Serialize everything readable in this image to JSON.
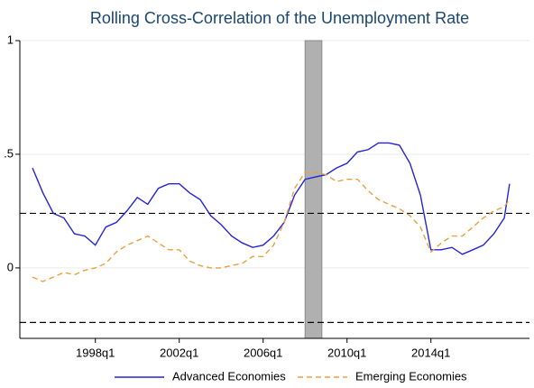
{
  "chart_data": {
    "type": "line",
    "title": "Rolling Cross-Correlation of the Unemployment Rate",
    "x": [
      1995.0,
      1995.5,
      1996.0,
      1996.5,
      1997.0,
      1997.5,
      1998.0,
      1998.5,
      1999.0,
      1999.5,
      2000.0,
      2000.5,
      2001.0,
      2001.5,
      2002.0,
      2002.5,
      2003.0,
      2003.5,
      2004.0,
      2004.5,
      2005.0,
      2005.5,
      2006.0,
      2006.5,
      2007.0,
      2007.5,
      2008.0,
      2008.5,
      2009.0,
      2009.5,
      2010.0,
      2010.5,
      2011.0,
      2011.5,
      2012.0,
      2012.5,
      2013.0,
      2013.5,
      2014.0,
      2014.5,
      2015.0,
      2015.5,
      2016.0,
      2016.5,
      2017.0,
      2017.5,
      2017.75
    ],
    "series": [
      {
        "name": "Advanced Economies",
        "color": "#2424d8",
        "dash": "solid",
        "values": [
          0.44,
          0.33,
          0.24,
          0.22,
          0.15,
          0.14,
          0.1,
          0.18,
          0.2,
          0.25,
          0.31,
          0.28,
          0.35,
          0.37,
          0.37,
          0.33,
          0.3,
          0.23,
          0.19,
          0.14,
          0.11,
          0.09,
          0.1,
          0.14,
          0.2,
          0.32,
          0.39,
          0.4,
          0.41,
          0.44,
          0.46,
          0.51,
          0.52,
          0.55,
          0.55,
          0.54,
          0.46,
          0.32,
          0.08,
          0.08,
          0.09,
          0.06,
          0.08,
          0.1,
          0.15,
          0.22,
          0.37
        ]
      },
      {
        "name": "Emerging Economies",
        "color": "#e8a040",
        "dash": "dashed",
        "values": [
          -0.04,
          -0.06,
          -0.04,
          -0.02,
          -0.03,
          -0.01,
          0.0,
          0.02,
          0.07,
          0.1,
          0.12,
          0.14,
          0.11,
          0.08,
          0.08,
          0.03,
          0.01,
          0.0,
          0.0,
          0.01,
          0.02,
          0.05,
          0.05,
          0.1,
          0.2,
          0.35,
          0.42,
          0.42,
          0.41,
          0.38,
          0.39,
          0.39,
          0.34,
          0.3,
          0.28,
          0.26,
          0.23,
          0.18,
          0.07,
          0.11,
          0.14,
          0.14,
          0.18,
          0.22,
          0.25,
          0.27,
          0.3
        ]
      }
    ],
    "hlines": [
      0.24,
      -0.24
    ],
    "shaded_region": [
      2008.0,
      2008.8
    ],
    "xlim": [
      1994.4,
      2018.7
    ],
    "xticks": [
      {
        "value": 1998,
        "label": "1998q1"
      },
      {
        "value": 2002,
        "label": "2002q1"
      },
      {
        "value": 2006,
        "label": "2006q1"
      },
      {
        "value": 2010,
        "label": "2010q1"
      },
      {
        "value": 2014,
        "label": "2014q1"
      }
    ],
    "ylim": [
      -0.31,
      1
    ],
    "yticks": [
      {
        "value": 0,
        "label": "0"
      },
      {
        "value": 0.5,
        "label": ".5"
      },
      {
        "value": 1,
        "label": "1"
      }
    ],
    "grid": true,
    "legend": "bottom"
  }
}
